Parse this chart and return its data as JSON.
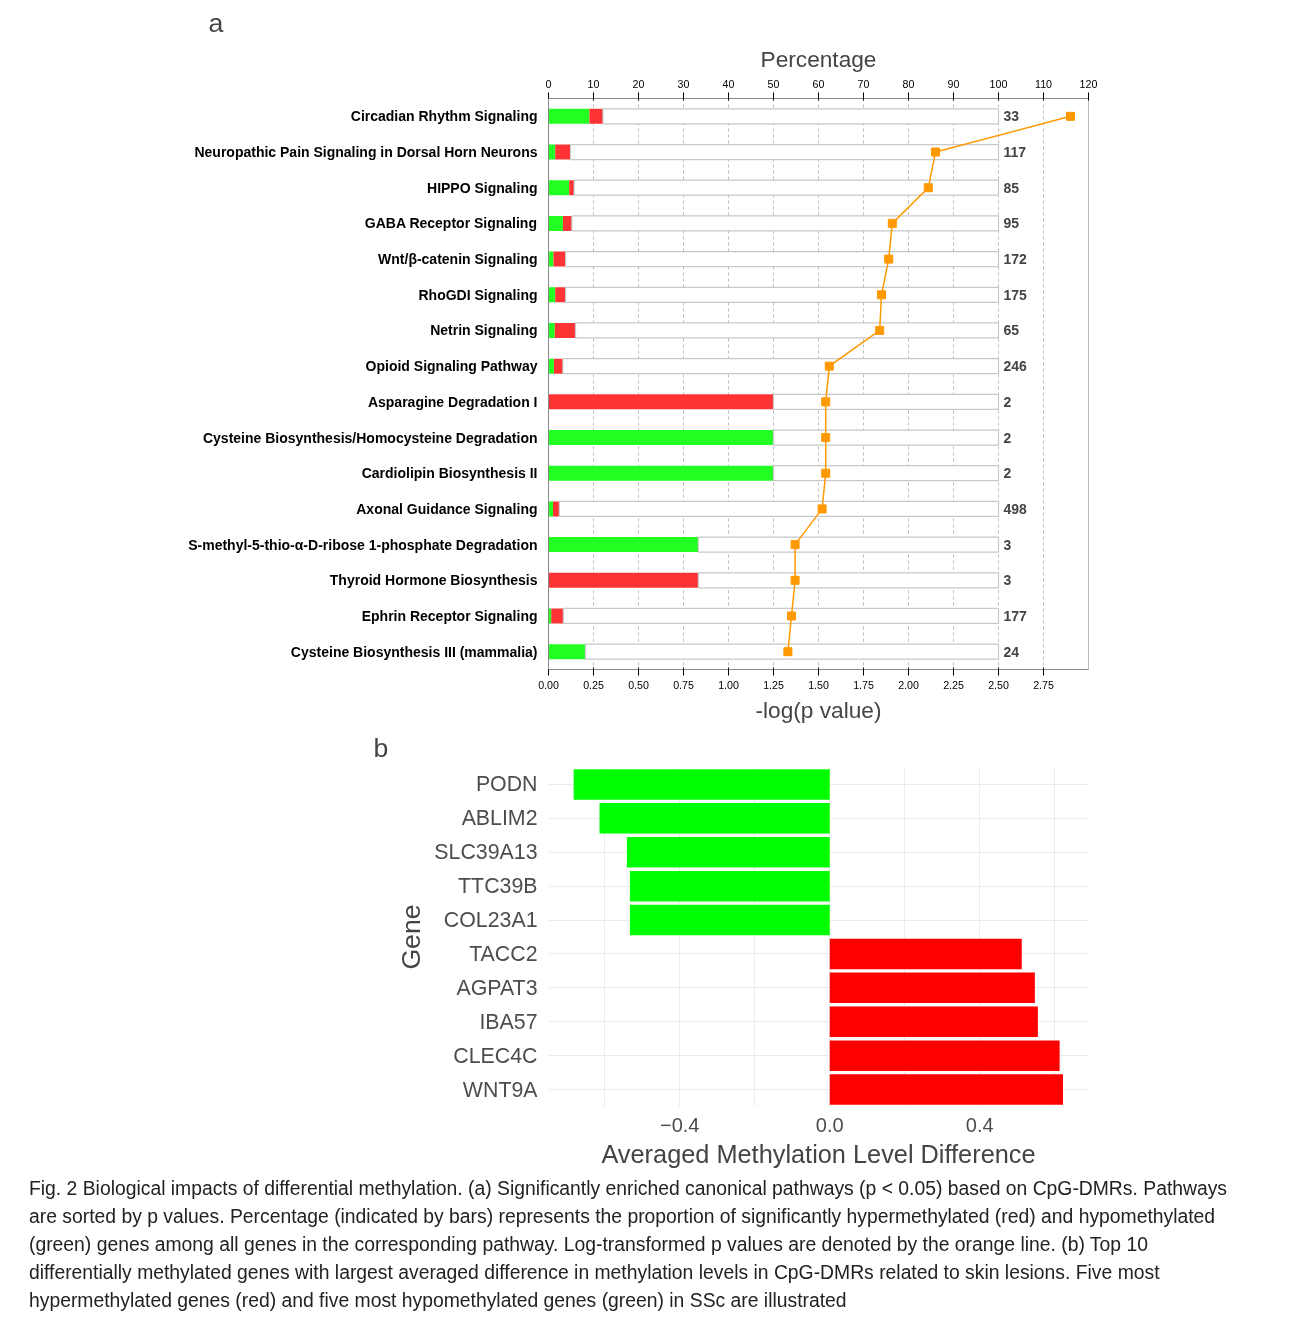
{
  "chart_data": [
    {
      "type": "bar",
      "title": "a",
      "orientation": "horizontal",
      "stacked": true,
      "grid": "x",
      "categories": [
        "Circadian Rhythm Signaling",
        "Neuropathic Pain Signaling in Dorsal Horn Neurons",
        "HIPPO Signaling",
        "GABA Receptor Signaling",
        "Wnt/β-catenin Signaling",
        "RhoGDI Signaling",
        "Netrin Signaling",
        "Opioid Signaling Pathway",
        "Asparagine Degradation I",
        "Cysteine Biosynthesis/Homocysteine Degradation",
        "Cardiolipin Biosynthesis II",
        "Axonal Guidance Signaling",
        "S-methyl-5-thio-α-D-ribose 1-phosphate Degradation",
        "Thyroid Hormone Biosynthesis",
        "Ephrin Receptor Signaling",
        "Cysteine Biosynthesis III (mammalia)"
      ],
      "series": [
        {
          "color": "#22ff22",
          "values": [
            9.1,
            1.5,
            4.6,
            3.2,
            1.1,
            1.5,
            1.4,
            1.2,
            0,
            50,
            50,
            1.0,
            33.3,
            0,
            0.6,
            8.2
          ]
        },
        {
          "color": "#ff3333",
          "values": [
            3.0,
            3.4,
            1.1,
            2.0,
            2.7,
            2.3,
            4.6,
            2.0,
            50,
            0,
            0,
            1.4,
            0,
            33.3,
            2.7,
            0
          ]
        },
        {
          "color": "#ffffff",
          "values": [
            87.9,
            95.1,
            94.3,
            94.8,
            96.2,
            96.2,
            94.0,
            96.8,
            50,
            50,
            50,
            97.6,
            66.7,
            66.7,
            96.7,
            91.8
          ]
        },
        {
          "type": "line",
          "axis": "x2",
          "color": "#ff9900",
          "marker": "square",
          "line_style": "solid",
          "values": [
            2.9,
            2.15,
            2.11,
            1.91,
            1.89,
            1.85,
            1.84,
            1.56,
            1.54,
            1.54,
            1.54,
            1.52,
            1.37,
            1.37,
            1.35,
            1.33
          ]
        }
      ],
      "xlabel": "Percentage",
      "xlim": [
        0,
        120
      ],
      "xticks": [
        0,
        10,
        20,
        30,
        40,
        50,
        60,
        70,
        80,
        90,
        100,
        110,
        120
      ],
      "x2label": "-log(p value)",
      "x2lim": [
        0,
        3.0
      ],
      "x2ticks": [
        {
          "value": 0,
          "label": "0.00"
        },
        {
          "value": 0.25,
          "label": "0.25"
        },
        {
          "value": 0.5,
          "label": "0.50"
        },
        {
          "value": 0.75,
          "label": "0.75"
        },
        {
          "value": 1,
          "label": "1.00"
        },
        {
          "value": 1.25,
          "label": "1.25"
        },
        {
          "value": 1.5,
          "label": "1.50"
        },
        {
          "value": 1.75,
          "label": "1.75"
        },
        {
          "value": 2,
          "label": "2.00"
        },
        {
          "value": 2.25,
          "label": "2.25"
        },
        {
          "value": 2.5,
          "label": "2.50"
        },
        {
          "value": 2.75,
          "label": "2.75"
        }
      ],
      "annotations": [
        "33",
        "117",
        "85",
        "95",
        "172",
        "175",
        "65",
        "246",
        "2",
        "2",
        "2",
        "498",
        "3",
        "3",
        "177",
        "24"
      ]
    },
    {
      "type": "bar",
      "title": "b",
      "orientation": "horizontal",
      "grid": true,
      "categories": [
        "PODN",
        "ABLIM2",
        "SLC39A13",
        "TTC39B",
        "COL23A1",
        "TACC2",
        "AGPAT3",
        "IBA57",
        "CLEC4C",
        "WNT9A"
      ],
      "values": [
        -0.683,
        -0.614,
        -0.541,
        -0.533,
        -0.533,
        0.512,
        0.547,
        0.555,
        0.613,
        0.622
      ],
      "colors": [
        "#00ff00",
        "#00ff00",
        "#00ff00",
        "#00ff00",
        "#00ff00",
        "#ff0000",
        "#ff0000",
        "#ff0000",
        "#ff0000",
        "#ff0000"
      ],
      "xlabel": "Averaged Methylation Level Difference",
      "ylabel": "Gene",
      "xlim": [
        -0.75,
        0.69
      ],
      "xticks": [
        {
          "value": -0.6,
          "label": null
        },
        {
          "value": -0.4,
          "label": "−0.4"
        },
        {
          "value": -0.2,
          "label": null
        },
        {
          "value": 0,
          "label": "0.0"
        },
        {
          "value": 0.2,
          "label": null
        },
        {
          "value": 0.4,
          "label": "0.4"
        },
        {
          "value": 0.6,
          "label": null
        }
      ],
      "annotations": [
        "Fig. 2 Biological impacts of differential methylation. (a) Significantly enriched canonical pathways (p < 0.05) based on CpG-DMRs. Pathways are sorted by p values. Percentage (indicated by bars) represents the proportion of significantly hypermethylated (red) and hypomethylated (green) genes among all genes in the corresponding pathway. Log-transformed p values are denoted by the orange line. (b) Top 10 differentially methylated genes with largest averaged difference in methylation levels in CpG-DMRs related to skin lesions. Five most hypermethylated genes (red) and five most hypomethylated genes (green) in SSc are illustrated"
      ]
    }
  ]
}
